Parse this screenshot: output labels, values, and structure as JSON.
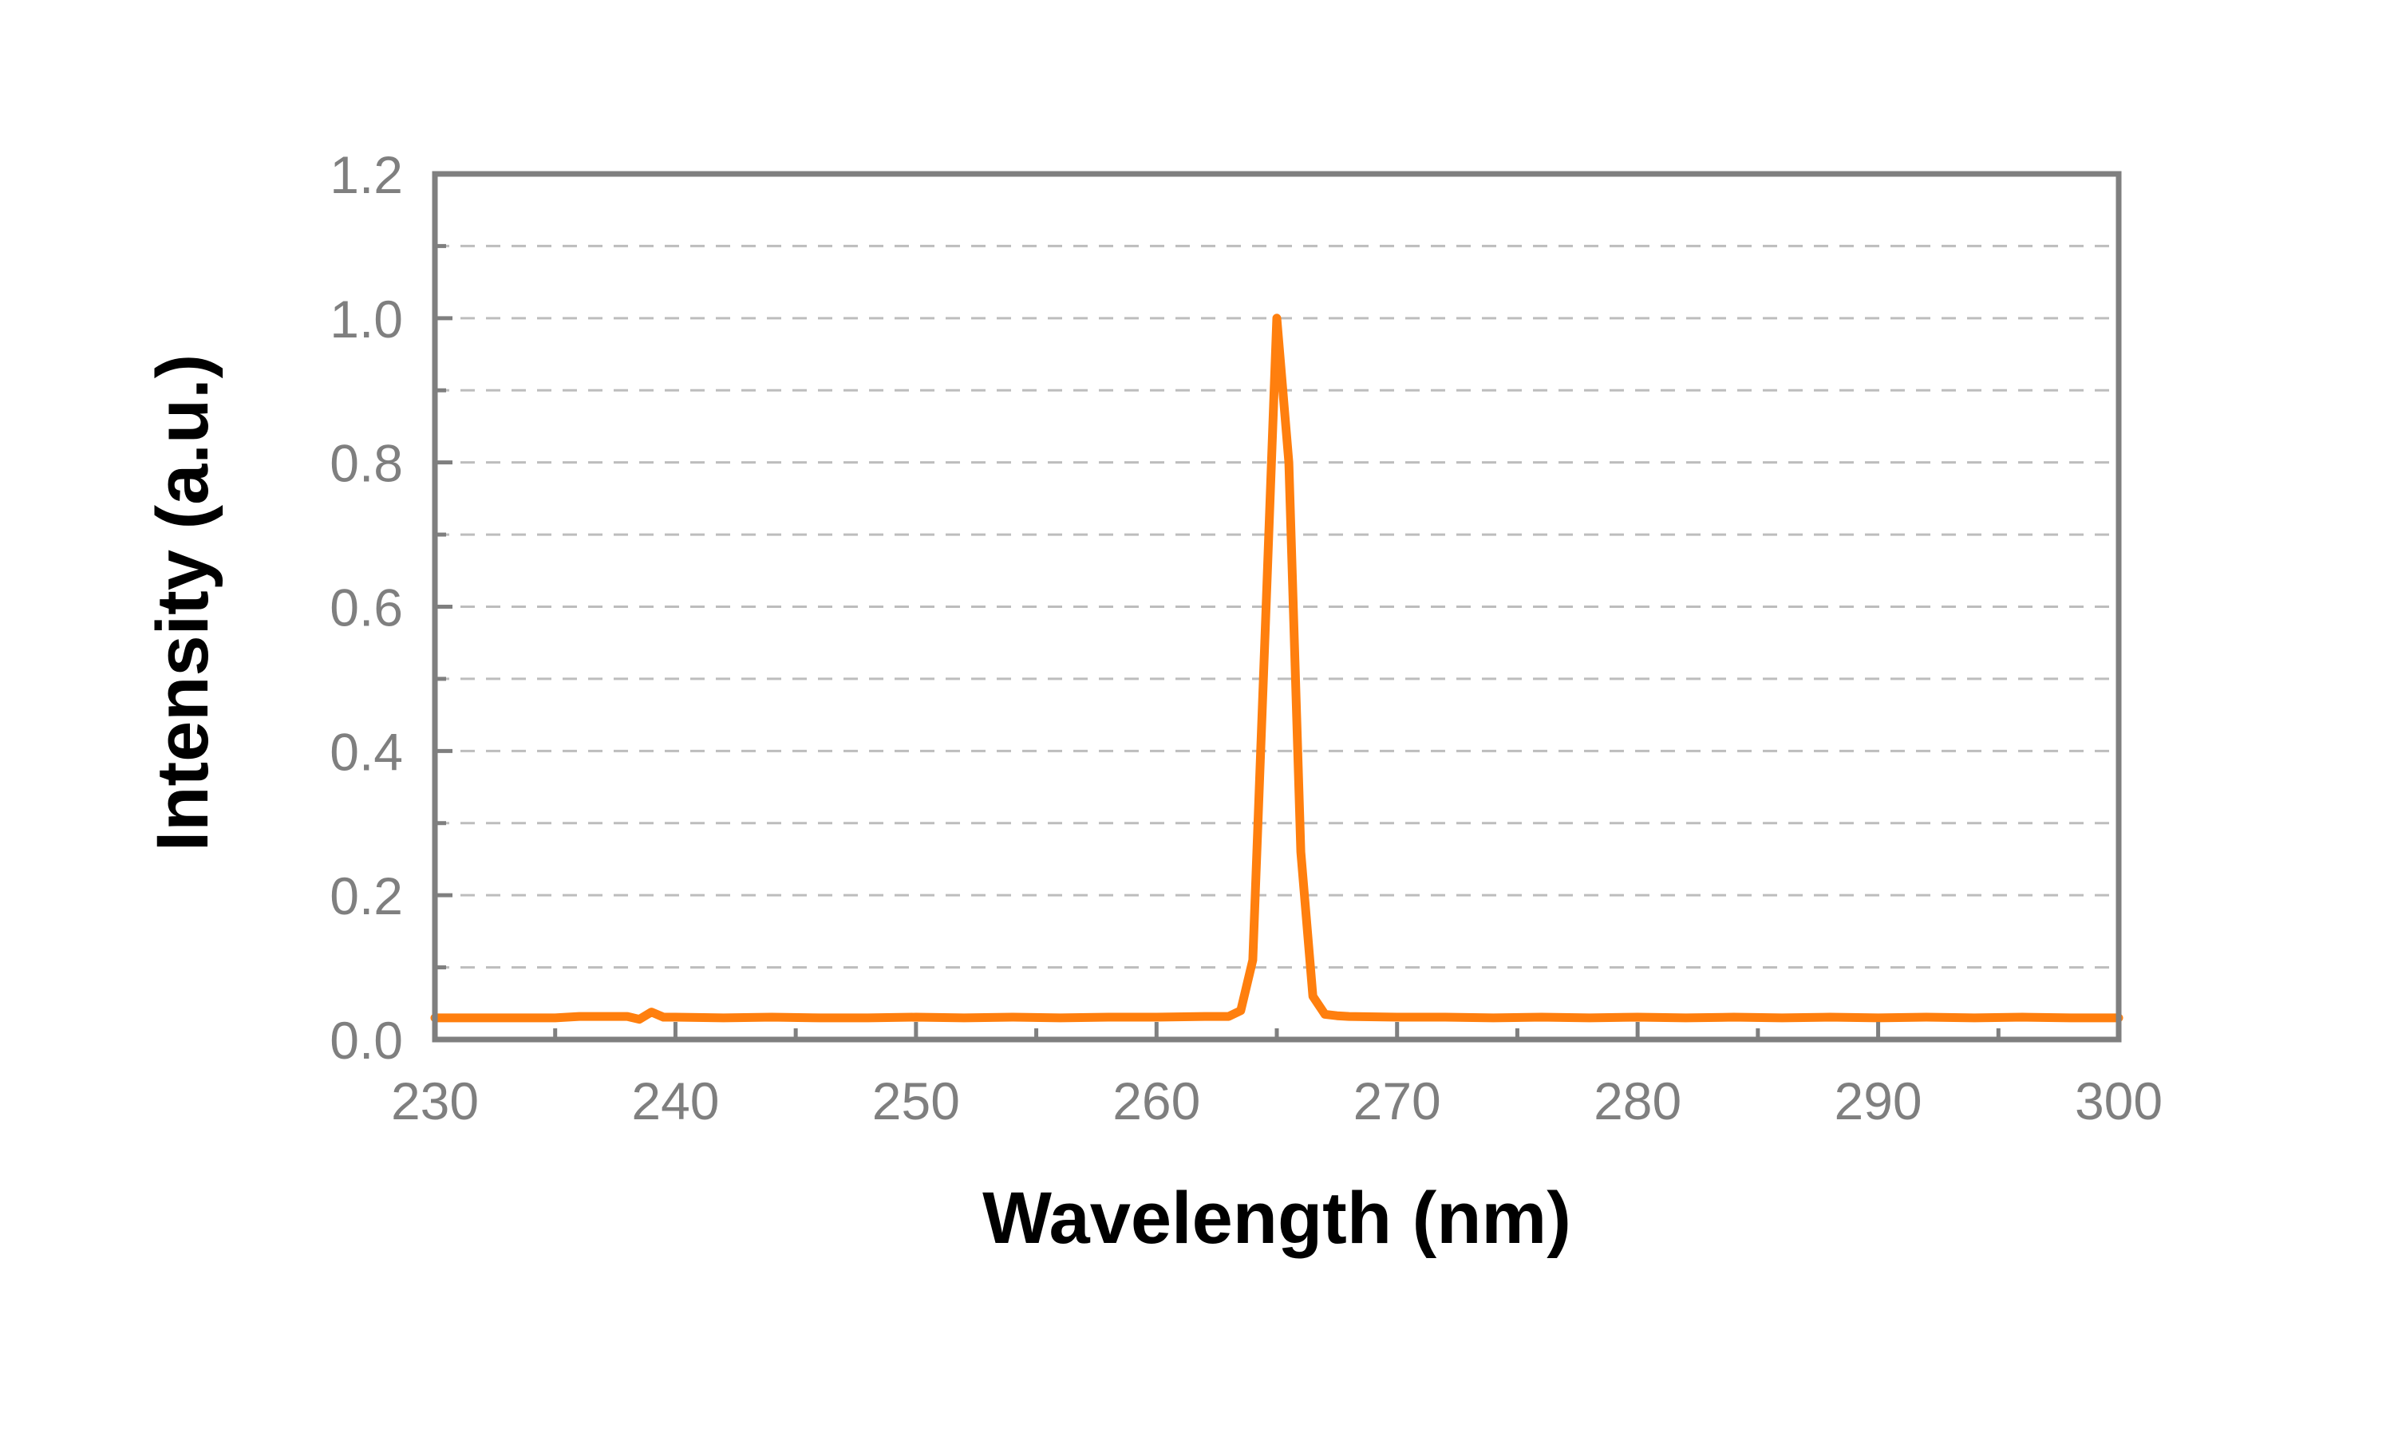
{
  "chart_data": {
    "type": "line",
    "title": "",
    "xlabel": "Wavelength (nm)",
    "ylabel": "Intensity (a.u.)",
    "xlim": [
      230,
      300
    ],
    "ylim": [
      0.0,
      1.2
    ],
    "x_ticks": [
      "230",
      "240",
      "250",
      "260",
      "270",
      "280",
      "290",
      "300"
    ],
    "y_ticks": [
      "0.0",
      "0.2",
      "0.4",
      "0.6",
      "0.8",
      "1.0",
      "1.2"
    ],
    "grid": "horizontal dashed",
    "legend": "none",
    "colors": {
      "series": "#ff7f0e",
      "frame": "#7f7f7f",
      "grid": "#bdbdbd",
      "tick_label": "#7f7f7f"
    },
    "series": [
      {
        "x": [
          230,
          232,
          234,
          235,
          236,
          238,
          238.5,
          239,
          239.5,
          240,
          242,
          244,
          246,
          248,
          250,
          252,
          254,
          256,
          258,
          260,
          262,
          263,
          263.5,
          264,
          264.5,
          265,
          265.5,
          266,
          266.5,
          267,
          267.5,
          268,
          270,
          272,
          274,
          276,
          278,
          280,
          282,
          284,
          286,
          288,
          290,
          292,
          294,
          296,
          298,
          300
        ],
        "y": [
          0.03,
          0.03,
          0.03,
          0.03,
          0.032,
          0.032,
          0.028,
          0.038,
          0.031,
          0.031,
          0.03,
          0.031,
          0.03,
          0.03,
          0.031,
          0.03,
          0.031,
          0.03,
          0.031,
          0.031,
          0.032,
          0.032,
          0.04,
          0.11,
          0.55,
          1.0,
          0.8,
          0.26,
          0.06,
          0.035,
          0.033,
          0.032,
          0.031,
          0.031,
          0.03,
          0.031,
          0.03,
          0.031,
          0.03,
          0.031,
          0.03,
          0.031,
          0.03,
          0.031,
          0.03,
          0.031,
          0.03,
          0.03
        ]
      }
    ]
  }
}
